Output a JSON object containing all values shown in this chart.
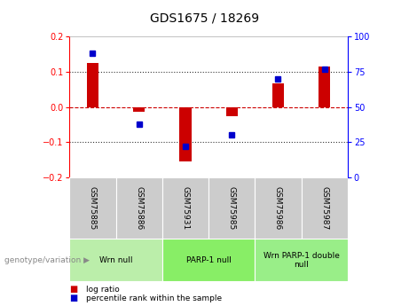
{
  "title": "GDS1675 / 18269",
  "samples": [
    "GSM75885",
    "GSM75886",
    "GSM75931",
    "GSM75985",
    "GSM75986",
    "GSM75987"
  ],
  "log_ratios": [
    0.125,
    -0.012,
    -0.155,
    -0.025,
    0.068,
    0.115
  ],
  "percentile_ranks": [
    88,
    38,
    22,
    30,
    70,
    77
  ],
  "ylim_left": [
    -0.2,
    0.2
  ],
  "ylim_right": [
    0,
    100
  ],
  "yticks_left": [
    -0.2,
    -0.1,
    0.0,
    0.1,
    0.2
  ],
  "yticks_right": [
    0,
    25,
    50,
    75,
    100
  ],
  "groups": [
    {
      "label": "Wrn null",
      "start": 0,
      "end": 2,
      "color": "#bbeeaa"
    },
    {
      "label": "PARP-1 null",
      "start": 2,
      "end": 4,
      "color": "#88ee66"
    },
    {
      "label": "Wrn PARP-1 double\nnull",
      "start": 4,
      "end": 6,
      "color": "#99ee88"
    }
  ],
  "bar_color": "#cc0000",
  "dot_color": "#0000cc",
  "zero_line_color": "#cc0000",
  "dotted_line_color": "#333333",
  "bg_plot": "#ffffff",
  "bg_sample": "#cccccc",
  "legend_lr_label": "log ratio",
  "legend_pr_label": "percentile rank within the sample",
  "genotype_label": "genotype/variation"
}
